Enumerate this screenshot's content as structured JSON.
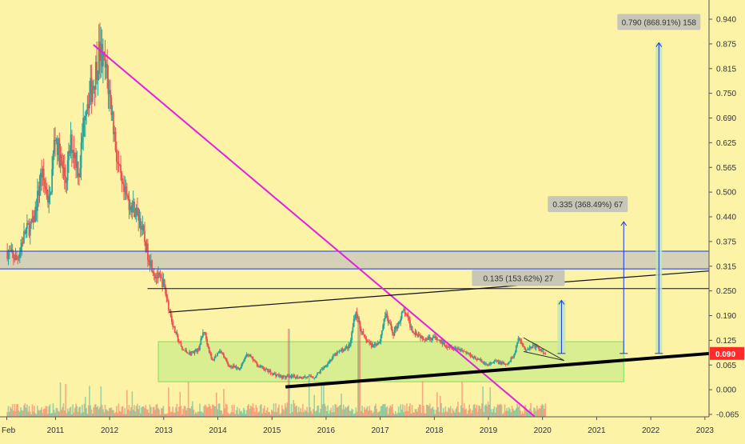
{
  "chart_data": {
    "type": "candlestick",
    "x_axis": {
      "labels": [
        "Feb",
        "2011",
        "2012",
        "2013",
        "2014",
        "2015",
        "2016",
        "2017",
        "2018",
        "2019",
        "2020",
        "2021",
        "2022",
        "2023"
      ],
      "start": 2010.1,
      "end": 2023.0
    },
    "y_axis": {
      "labels": [
        "0.940",
        "0.875",
        "0.815",
        "0.750",
        "0.690",
        "0.625",
        "0.565",
        "0.500",
        "0.440",
        "0.375",
        "0.315",
        "0.250",
        "0.190",
        "0.125",
        "0.065",
        "0.000",
        "-0.065"
      ],
      "min": -0.065,
      "max": 0.94
    },
    "last_price": {
      "label": "0.090",
      "value": 0.09,
      "color": "#ff2b2b"
    },
    "price_path": [
      [
        2010.1,
        0.35
      ],
      [
        2010.3,
        0.33
      ],
      [
        2010.45,
        0.4
      ],
      [
        2010.6,
        0.42
      ],
      [
        2010.75,
        0.55
      ],
      [
        2010.9,
        0.47
      ],
      [
        2011.0,
        0.65
      ],
      [
        2011.1,
        0.58
      ],
      [
        2011.2,
        0.53
      ],
      [
        2011.3,
        0.63
      ],
      [
        2011.45,
        0.55
      ],
      [
        2011.55,
        0.72
      ],
      [
        2011.7,
        0.77
      ],
      [
        2011.82,
        0.86
      ],
      [
        2011.95,
        0.8
      ],
      [
        2012.05,
        0.71
      ],
      [
        2012.15,
        0.58
      ],
      [
        2012.25,
        0.5
      ],
      [
        2012.4,
        0.47
      ],
      [
        2012.55,
        0.44
      ],
      [
        2012.7,
        0.35
      ],
      [
        2012.85,
        0.29
      ],
      [
        2013.0,
        0.27
      ],
      [
        2013.2,
        0.15
      ],
      [
        2013.35,
        0.1
      ],
      [
        2013.5,
        0.09
      ],
      [
        2013.65,
        0.1
      ],
      [
        2013.75,
        0.15
      ],
      [
        2013.9,
        0.07
      ],
      [
        2014.05,
        0.1
      ],
      [
        2014.2,
        0.06
      ],
      [
        2014.4,
        0.05
      ],
      [
        2014.55,
        0.09
      ],
      [
        2014.75,
        0.06
      ],
      [
        2015.0,
        0.04
      ],
      [
        2015.2,
        0.03
      ],
      [
        2015.5,
        0.03
      ],
      [
        2015.8,
        0.03
      ],
      [
        2016.0,
        0.06
      ],
      [
        2016.2,
        0.09
      ],
      [
        2016.45,
        0.11
      ],
      [
        2016.55,
        0.2
      ],
      [
        2016.7,
        0.13
      ],
      [
        2016.85,
        0.11
      ],
      [
        2017.0,
        0.12
      ],
      [
        2017.1,
        0.19
      ],
      [
        2017.25,
        0.14
      ],
      [
        2017.45,
        0.2
      ],
      [
        2017.6,
        0.15
      ],
      [
        2017.8,
        0.13
      ],
      [
        2018.0,
        0.13
      ],
      [
        2018.25,
        0.11
      ],
      [
        2018.5,
        0.1
      ],
      [
        2018.75,
        0.08
      ],
      [
        2019.0,
        0.06
      ],
      [
        2019.15,
        0.07
      ],
      [
        2019.35,
        0.06
      ],
      [
        2019.5,
        0.09
      ],
      [
        2019.55,
        0.13
      ],
      [
        2019.7,
        0.1
      ],
      [
        2019.85,
        0.11
      ],
      [
        2020.05,
        0.09
      ]
    ],
    "horizontal_lines": [
      {
        "value": 0.35,
        "color": "#1a36e6"
      },
      {
        "value": 0.305,
        "color": "#1a36e6"
      },
      {
        "value": 0.255,
        "color": "#111111"
      }
    ],
    "shaded_band": {
      "from": 0.305,
      "to": 0.35,
      "color": "#c6c5bb"
    },
    "trend_lines": [
      {
        "from": [
          2011.7,
          0.875
        ],
        "to": [
          2019.85,
          -0.07
        ],
        "color": "#e020e0"
      },
      {
        "from": [
          2013.1,
          0.195
        ],
        "to": [
          2023.1,
          0.3
        ],
        "color": "#111111"
      },
      {
        "from": [
          2015.25,
          0.005
        ],
        "to": [
          2023.1,
          0.09
        ],
        "color": "#000000"
      },
      {
        "from": [
          2019.65,
          0.13
        ],
        "to": [
          2020.4,
          0.072
        ],
        "color": "#333333"
      },
      {
        "from": [
          2019.65,
          0.095
        ],
        "to": [
          2020.4,
          0.072
        ],
        "color": "#333333"
      }
    ],
    "range_box": {
      "x_from": 2012.9,
      "x_to": 2021.5,
      "y_from": 0.018,
      "y_to": 0.12,
      "color": "#7ee05a"
    },
    "targets": [
      {
        "label": "0.135 (153.62%) 27",
        "x": 2020.35,
        "from": 0.09,
        "to": 0.225
      },
      {
        "label": "0.335 (368.49%) 67",
        "x": 2021.5,
        "from": 0.09,
        "to": 0.425
      },
      {
        "label": "0.790 (868.91%) 158",
        "x": 2022.15,
        "from": 0.09,
        "to": 0.88
      }
    ]
  }
}
